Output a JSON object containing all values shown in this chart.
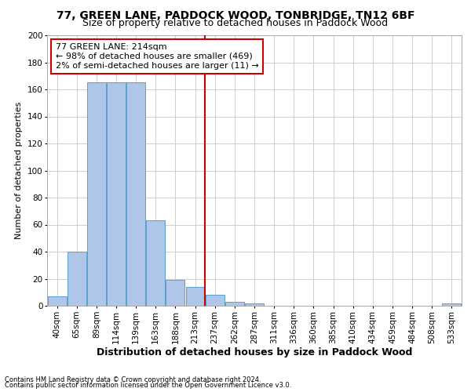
{
  "title": "77, GREEN LANE, PADDOCK WOOD, TONBRIDGE, TN12 6BF",
  "subtitle": "Size of property relative to detached houses in Paddock Wood",
  "xlabel": "Distribution of detached houses by size in Paddock Wood",
  "ylabel": "Number of detached properties",
  "bin_labels": [
    "40sqm",
    "65sqm",
    "89sqm",
    "114sqm",
    "139sqm",
    "163sqm",
    "188sqm",
    "213sqm",
    "237sqm",
    "262sqm",
    "287sqm",
    "311sqm",
    "336sqm",
    "360sqm",
    "385sqm",
    "410sqm",
    "434sqm",
    "459sqm",
    "484sqm",
    "508sqm",
    "533sqm"
  ],
  "bar_heights": [
    7,
    40,
    165,
    165,
    165,
    63,
    19,
    14,
    8,
    3,
    2,
    0,
    0,
    0,
    0,
    0,
    0,
    0,
    0,
    0,
    2
  ],
  "bar_color": "#aec6e8",
  "bar_edge_color": "#5a9fd4",
  "vline_x_index": 7,
  "vline_color": "#cc0000",
  "annotation_text": "77 GREEN LANE: 214sqm\n← 98% of detached houses are smaller (469)\n2% of semi-detached houses are larger (11) →",
  "annotation_box_color": "#cc0000",
  "footnote1": "Contains HM Land Registry data © Crown copyright and database right 2024.",
  "footnote2": "Contains public sector information licensed under the Open Government Licence v3.0.",
  "ylim": [
    0,
    200
  ],
  "yticks": [
    0,
    20,
    40,
    60,
    80,
    100,
    120,
    140,
    160,
    180,
    200
  ],
  "title_fontsize": 10,
  "subtitle_fontsize": 9,
  "xlabel_fontsize": 9,
  "ylabel_fontsize": 8,
  "tick_fontsize": 7.5,
  "annot_fontsize": 8,
  "footnote_fontsize": 6,
  "background_color": "#ffffff",
  "grid_color": "#c8c8c8"
}
